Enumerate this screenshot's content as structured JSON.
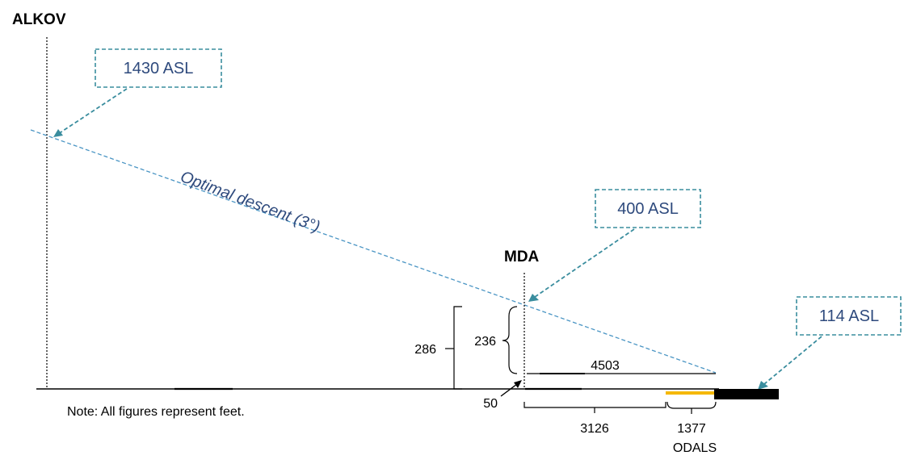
{
  "labels": {
    "alkov": "ALKOV",
    "mda": "MDA",
    "slope": "Optimal descent (3°)",
    "note": "Note: All figures represent feet."
  },
  "callouts": {
    "alkov_alt": "1430 ASL",
    "mda_alt": "400 ASL",
    "runway_alt": "114 ASL"
  },
  "dimensions": {
    "total_height": "286",
    "mda_height": "236",
    "mda_offset": "50",
    "horizontal_to_threshold": "4503",
    "ground_run": "3126",
    "odals_length": "1377",
    "odals_label": "ODALS"
  },
  "colors": {
    "callout": "#3a8d9e",
    "callout_text": "#2e4a7d",
    "glide_path": "#4a95c4",
    "odals": "#f5b800",
    "runway": "#000000"
  }
}
